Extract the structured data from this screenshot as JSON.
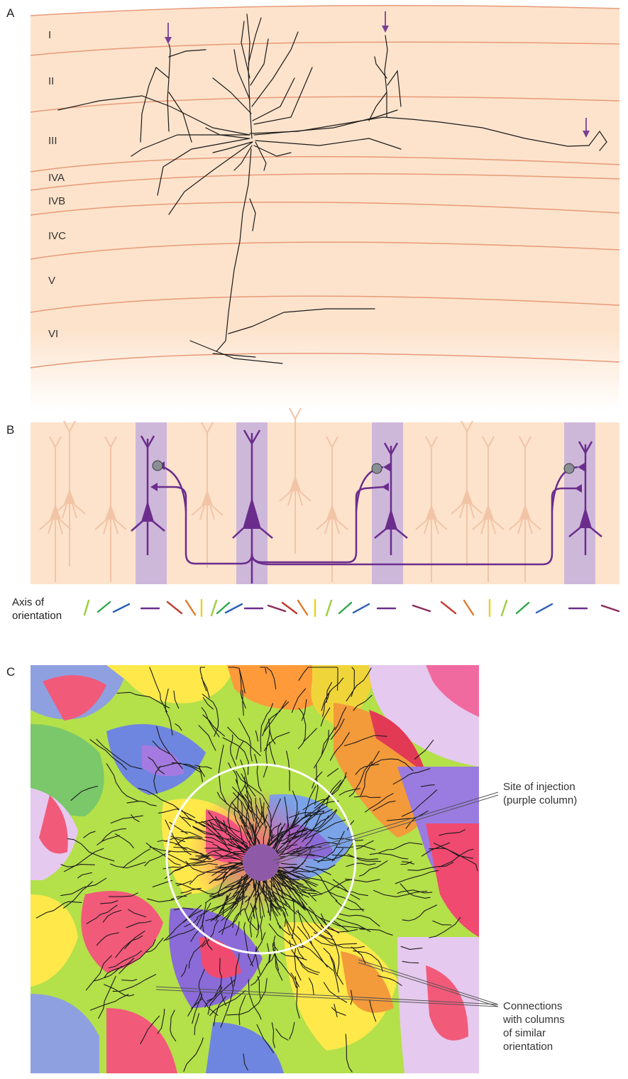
{
  "panels": {
    "a": {
      "letter": "A",
      "layers": [
        {
          "label": "I"
        },
        {
          "label": "II"
        },
        {
          "label": "III"
        },
        {
          "label": "IVA"
        },
        {
          "label": "IVB"
        },
        {
          "label": "IVC"
        },
        {
          "label": "V"
        },
        {
          "label": "VI"
        }
      ]
    },
    "b": {
      "letter": "B",
      "axis_label_line1": "Axis of",
      "axis_label_line2": "orientation",
      "orientation_colors": [
        "#9ccd3c",
        "#2fa84a",
        "#2b5fb8",
        "#6a2e8a",
        "#c0392b",
        "#e07a2a",
        "#e6d21a",
        "#9ccd3c",
        "#2fa84a",
        "#2b5fb8",
        "#6a2e8a",
        "#8a2a5a",
        "#c0392b",
        "#e07a2a",
        "#e6d21a",
        "#9ccd3c",
        "#2fa84a",
        "#2b5fb8",
        "#6a2e8a",
        "#8a2a5a",
        "#c0392b",
        "#e07a2a",
        "#e6d21a",
        "#9ccd3c",
        "#2fa84a",
        "#2b5fb8",
        "#6a2e8a",
        "#8a2a5a"
      ]
    },
    "c": {
      "letter": "C",
      "callout_injection_line1": "Site of injection",
      "callout_injection_line2": "(purple column)",
      "callout_connections": [
        "Connections",
        "with columns",
        "of similar",
        "orientation"
      ]
    }
  },
  "colors": {
    "tissue": "#fde3cc",
    "layer_line": "#e79a7a",
    "neuron_highlight": "#6b2d8c",
    "column_highlight": "#c9b3dc",
    "faint_neuron": "#f2c4a6",
    "arrow": "#7b3f93"
  }
}
